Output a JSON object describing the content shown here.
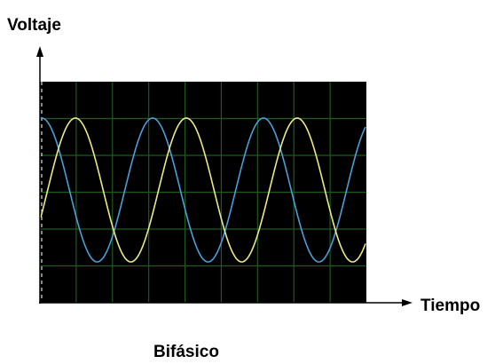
{
  "y_axis_label": "Voltaje",
  "x_axis_label": "Tiempo",
  "caption": "Bifásico"
}
